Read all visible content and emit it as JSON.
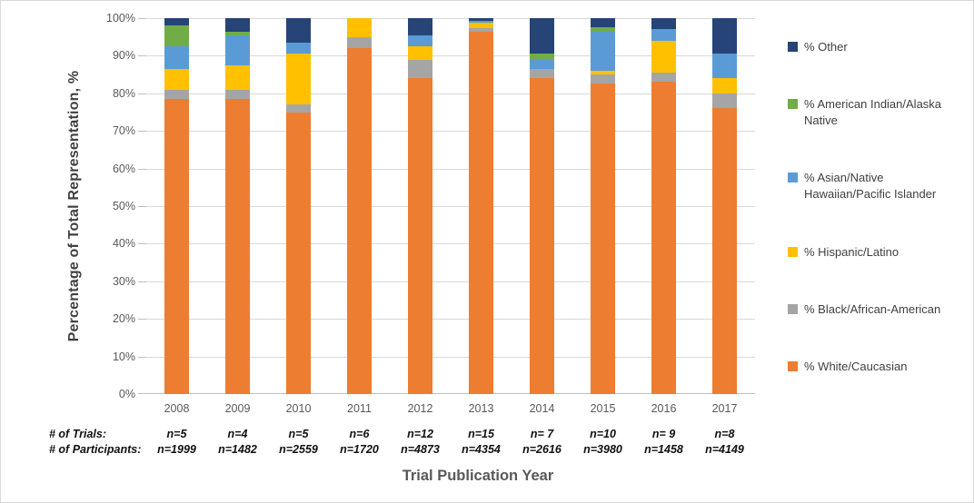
{
  "chart_data": {
    "type": "bar",
    "subtype": "stacked-100-percent",
    "title": "",
    "xlabel": "Trial Publication Year",
    "ylabel": "Percentage of Total Representation, %",
    "categories": [
      "2008",
      "2009",
      "2010",
      "2011",
      "2012",
      "2013",
      "2014",
      "2015",
      "2016",
      "2017"
    ],
    "y_ticks": [
      "0%",
      "10%",
      "20%",
      "30%",
      "40%",
      "50%",
      "60%",
      "70%",
      "80%",
      "90%",
      "100%"
    ],
    "ylim": [
      0,
      100
    ],
    "grid": true,
    "legend_position": "right",
    "series": [
      {
        "key": "white",
        "name": "% White/Caucasian",
        "color": "#ED7D31",
        "values": [
          78.5,
          78.5,
          75,
          92,
          84,
          96.5,
          84,
          82.5,
          83,
          76
        ]
      },
      {
        "key": "black",
        "name": "% Black/African-American",
        "color": "#A5A5A5",
        "values": [
          2.5,
          2.5,
          2,
          3,
          5,
          0.8,
          2.5,
          2.5,
          2.5,
          4
        ]
      },
      {
        "key": "hispanic",
        "name": "% Hispanic/Latino",
        "color": "#FFC000",
        "values": [
          5.5,
          6.5,
          13.5,
          5,
          3.5,
          1.5,
          0,
          1,
          8.5,
          4
        ]
      },
      {
        "key": "asian",
        "name": "% Asian/Native Hawaiian/Pacific Islander",
        "color": "#5B9BD5",
        "values": [
          6,
          8,
          3,
          0,
          3,
          0.5,
          2.5,
          10.5,
          3,
          6.5
        ]
      },
      {
        "key": "amindian",
        "name": "% American Indian/Alaska Native",
        "color": "#70AD47",
        "values": [
          5.5,
          1,
          0,
          0,
          0,
          0,
          1.5,
          1,
          0,
          0
        ]
      },
      {
        "key": "other",
        "name": "% Other",
        "color": "#264478",
        "values": [
          2,
          3.5,
          6.5,
          0,
          4.5,
          0.7,
          9.5,
          2.5,
          3,
          9.5
        ]
      }
    ],
    "annotations": {
      "trials_label": "# of Trials:",
      "participants_label": "# of Participants:",
      "trials": [
        "n=5",
        "n=4",
        "n=5",
        "n=6",
        "n=12",
        "n=15",
        "n= 7",
        "n=10",
        "n= 9",
        "n=8"
      ],
      "participants": [
        "n=1999",
        "n=1482",
        "n=2559",
        "n=1720",
        "n=4873",
        "n=4354",
        "n=2616",
        "n=3980",
        "n=1458",
        "n=4149"
      ]
    }
  }
}
